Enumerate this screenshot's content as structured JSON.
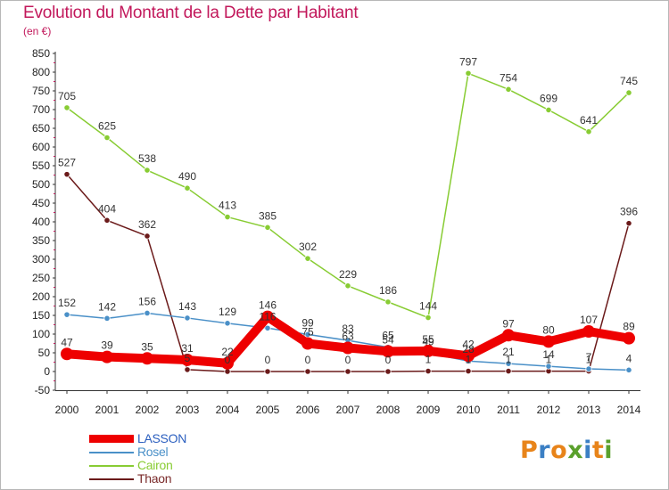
{
  "title": "Evolution du Montant de la Dette par Habitant",
  "subtitle": "(en €)",
  "logo_text": "Proxiti",
  "chart_data": {
    "type": "line",
    "x": [
      "2000",
      "2001",
      "2002",
      "2003",
      "2004",
      "2005",
      "2006",
      "2007",
      "2008",
      "2009",
      "2010",
      "2011",
      "2012",
      "2013",
      "2014"
    ],
    "ylim": [
      -50,
      850
    ],
    "yticks": [
      -50,
      0,
      50,
      100,
      150,
      200,
      250,
      300,
      350,
      400,
      450,
      500,
      550,
      600,
      650,
      700,
      750,
      800,
      850
    ],
    "grid": false,
    "legend_position": "bottom-left",
    "series": [
      {
        "name": "LASSON",
        "color": "#ee0000",
        "values": [
          47,
          39,
          35,
          31,
          22,
          146,
          75,
          63,
          54,
          55,
          42,
          97,
          80,
          107,
          89
        ],
        "labels": [
          "47",
          "39",
          "35",
          "31",
          "22",
          "146",
          "75",
          "63",
          "54",
          "55",
          "42",
          "97",
          "80",
          "107",
          "89"
        ]
      },
      {
        "name": "Rosel",
        "color": "#4a90c8",
        "values": [
          152,
          142,
          156,
          143,
          129,
          116,
          99,
          83,
          65,
          49,
          28,
          21,
          14,
          7,
          4
        ],
        "labels": [
          "152",
          "142",
          "156",
          "143",
          "129",
          "116",
          "99",
          "83",
          "65",
          "49",
          "28",
          "21",
          "14",
          "7",
          "4"
        ]
      },
      {
        "name": "Cairon",
        "color": "#88cc33",
        "values": [
          705,
          625,
          538,
          490,
          413,
          385,
          302,
          229,
          186,
          144,
          797,
          754,
          699,
          641,
          745
        ],
        "labels": [
          "705",
          "625",
          "538",
          "490",
          "413",
          "385",
          "302",
          "229",
          "186",
          "144",
          "797",
          "754",
          "699",
          "641",
          "745"
        ]
      },
      {
        "name": "Thaon",
        "color": "#6b1a1a",
        "values": [
          527,
          404,
          362,
          5,
          0,
          0,
          0,
          0,
          0,
          1,
          1,
          1,
          1,
          1,
          396
        ],
        "labels": [
          "527",
          "404",
          "362",
          "5",
          "0",
          "0",
          "0",
          "0",
          "0",
          "1",
          "1",
          "1",
          "1",
          "1",
          "396"
        ]
      }
    ]
  }
}
